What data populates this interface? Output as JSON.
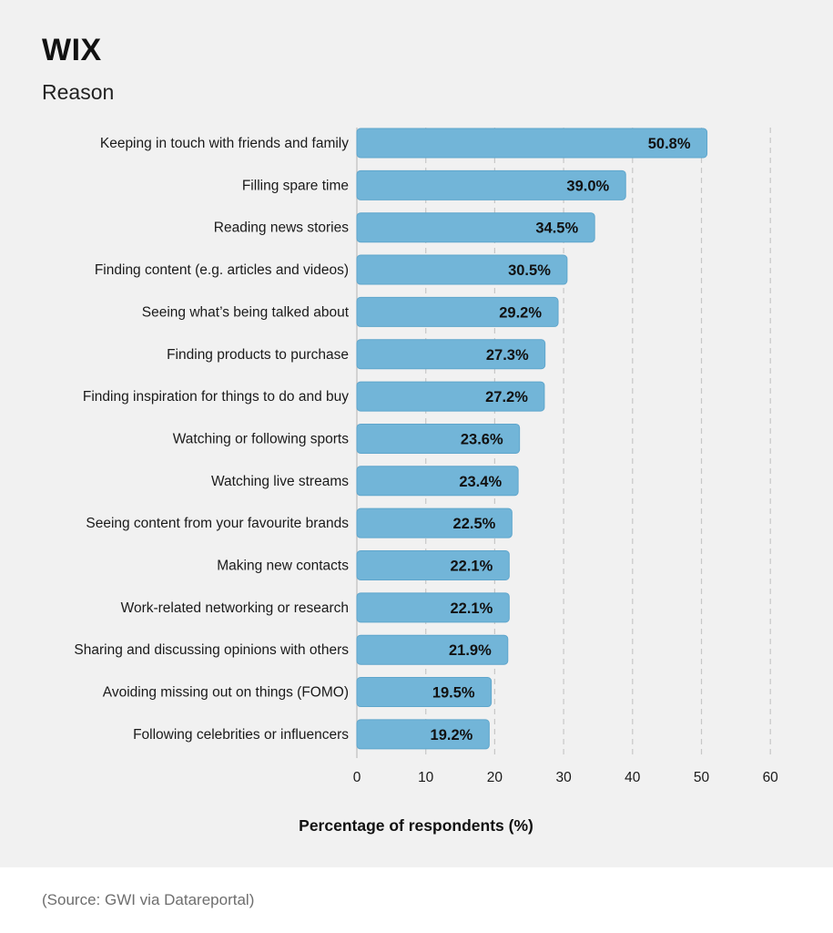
{
  "brand": {
    "logo_text": "WIX"
  },
  "colors": {
    "bar": "#72b5d8",
    "bar_stroke": "#5fa6cc",
    "grid": "#c7c7c7",
    "background": "#f1f1f1"
  },
  "chart_data": {
    "type": "bar",
    "orientation": "horizontal",
    "title": "",
    "subtitle": "Reason",
    "xlabel": "Percentage of respondents (%)",
    "ylabel": "",
    "xlim": [
      0,
      60
    ],
    "xticks": [
      0,
      10,
      20,
      30,
      40,
      50,
      60
    ],
    "grid": "vertical dashed",
    "legend": "none",
    "categories": [
      "Keeping in touch with friends and family",
      "Filling spare time",
      "Reading news stories",
      "Finding content (e.g. articles and videos)",
      "Seeing what’s being talked about",
      "Finding products to purchase",
      "Finding inspiration for things to do and buy",
      "Watching or following sports",
      "Watching live streams",
      "Seeing content from your favourite brands",
      "Making new contacts",
      "Work-related networking or research",
      "Sharing and discussing opinions with others",
      "Avoiding missing out on things (FOMO)",
      "Following celebrities or influencers"
    ],
    "values": [
      50.8,
      39.0,
      34.5,
      30.5,
      29.2,
      27.3,
      27.2,
      23.6,
      23.4,
      22.5,
      22.1,
      22.1,
      21.9,
      19.5,
      19.2
    ],
    "value_labels": [
      "50.8%",
      "39.0%",
      "34.5%",
      "30.5%",
      "29.2%",
      "27.3%",
      "27.2%",
      "23.6%",
      "23.4%",
      "22.5%",
      "22.1%",
      "22.1%",
      "21.9%",
      "19.5%",
      "19.2%"
    ]
  },
  "source_text": "(Source: GWI via Datareportal)"
}
